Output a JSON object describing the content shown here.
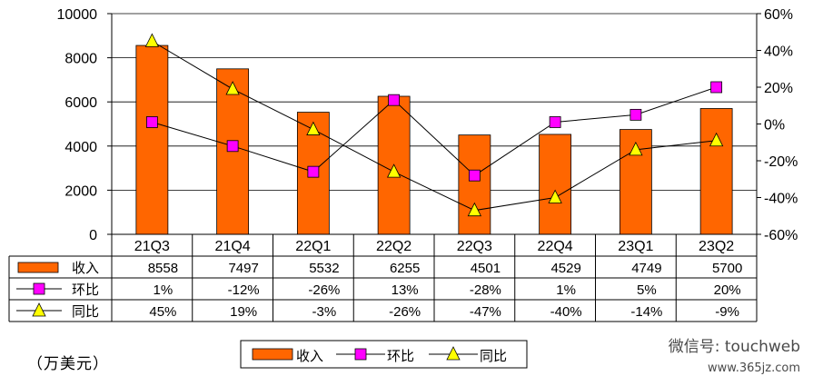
{
  "unit_label": "（万美元）",
  "watermark": {
    "line1": "微信号: touchweb",
    "line2": "www.365jz.com"
  },
  "legend": {
    "items": [
      "收入",
      "环比",
      "同比"
    ]
  },
  "table": {
    "rows": [
      {
        "label": "收入",
        "values": [
          "8558",
          "7497",
          "5532",
          "6255",
          "4501",
          "4529",
          "4749",
          "5700"
        ]
      },
      {
        "label": "环比",
        "values": [
          "1%",
          "-12%",
          "-26%",
          "13%",
          "-28%",
          "1%",
          "5%",
          "20%"
        ]
      },
      {
        "label": "同比",
        "values": [
          "45%",
          "19%",
          "-3%",
          "-26%",
          "-47%",
          "-40%",
          "-14%",
          "-9%"
        ]
      }
    ]
  },
  "chart_data": {
    "type": "bar",
    "categories": [
      "21Q3",
      "21Q4",
      "22Q1",
      "22Q2",
      "22Q3",
      "22Q4",
      "23Q1",
      "23Q2"
    ],
    "series": [
      {
        "name": "收入",
        "type": "bar",
        "axis": "left",
        "color": "#ff6600",
        "values": [
          8558,
          7497,
          5532,
          6255,
          4501,
          4529,
          4749,
          5700
        ]
      },
      {
        "name": "环比",
        "type": "line",
        "axis": "right",
        "marker": "square",
        "color": "#ff00ff",
        "values": [
          1,
          -12,
          -26,
          13,
          -28,
          1,
          5,
          20
        ]
      },
      {
        "name": "同比",
        "type": "line",
        "axis": "right",
        "marker": "triangle",
        "color": "#ffff00",
        "values": [
          45,
          19,
          -3,
          -26,
          -47,
          -40,
          -14,
          -9
        ]
      }
    ],
    "ylim_left": [
      0,
      10000
    ],
    "yticks_left": [
      "0",
      "2000",
      "4000",
      "6000",
      "8000",
      "10000"
    ],
    "ylim_right": [
      -60,
      60
    ],
    "yticks_right": [
      "-60%",
      "-40%",
      "-20%",
      "0%",
      "20%",
      "40%",
      "60%"
    ],
    "grid": true,
    "legend_position": "bottom"
  }
}
